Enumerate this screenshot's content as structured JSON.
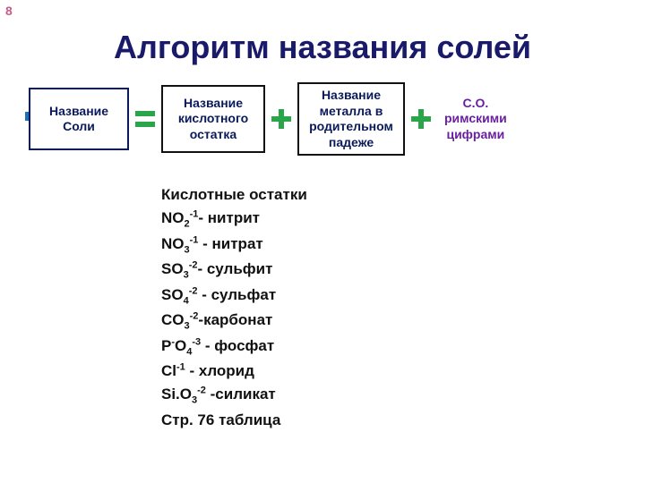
{
  "page_number": "8",
  "page_number_color": "#c95a8a",
  "title": "Алгоритм названия солей",
  "title_color": "#1a1a6a",
  "blue_bar_color": "#1f6fb3",
  "boxes": {
    "b1": {
      "text": "Название\nСоли",
      "border": "#0a1a5a",
      "color": "#0a1a5a"
    },
    "b2": {
      "text": "Название\nкислотного\nостатка",
      "border": "#111111",
      "color": "#0a1a5a"
    },
    "b3": {
      "text": "Название\nметалла в\nродительном\nпадеже",
      "border": "#111111",
      "color": "#0a1a5a"
    },
    "b4": {
      "text": "С.О.\nримскими\nцифрами",
      "color": "#6a1fa3"
    }
  },
  "ops": {
    "eq_color": "#2aa54a",
    "plus1_color": "#2aa54a",
    "plus2_color": "#2aa54a"
  },
  "list": {
    "header": "Кислотные остатки",
    "header_color": "#111111",
    "items": [
      {
        "formula_html": "NO<span class='sub'>2</span><span class='sup'>-1</span>",
        "name": "- нитрит"
      },
      {
        "formula_html": "NO<span class='sub'>3</span><span class='sup'>-1</span>",
        "name": " - нитрат"
      },
      {
        "formula_html": "SO<span class='sub'>3</span><span class='sup'>-2</span>",
        "name": "- сульфит"
      },
      {
        "formula_html": "SO<span class='sub'>4</span><span class='sup'>-2</span>",
        "name": " - сульфат"
      },
      {
        "formula_html": "CO<span class='sub'>3</span><span class='sup'>-2</span>",
        "name": "-карбонат"
      },
      {
        "formula_html": "P<span class='sup'>-</span>O<span class='sub'>4</span><span class='sup'>-3</span>",
        "name": " - фосфат"
      },
      {
        "formula_html": "Cl<span class='sup'>-1</span>",
        "name": "   - хлорид"
      },
      {
        "formula_html": "Si.O<span class='sub'>3</span><span class='sup'>-2</span>",
        "name": " -силикат"
      }
    ],
    "footer": "Стр. 76 таблица",
    "item_color": "#111111"
  }
}
